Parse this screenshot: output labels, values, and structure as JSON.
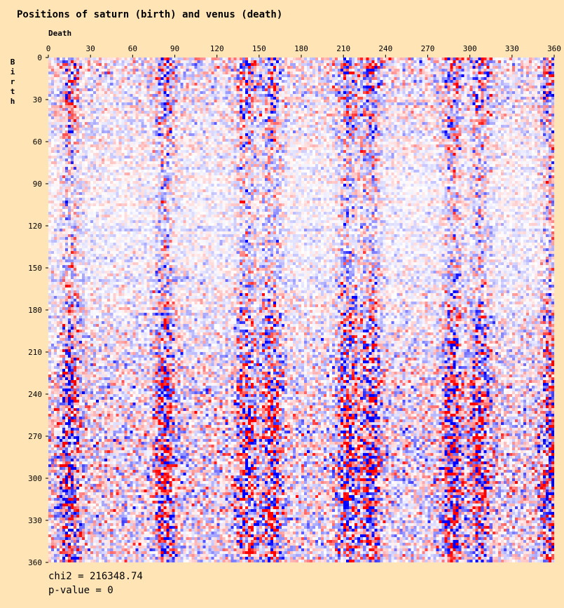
{
  "chart_data": {
    "type": "heatmap",
    "title": "Positions of saturn (birth) and venus (death)",
    "xlabel": "Death",
    "ylabel": "Birth",
    "xlim": [
      0,
      360
    ],
    "ylim": [
      0,
      360
    ],
    "x_ticks": [
      0,
      30,
      60,
      90,
      120,
      150,
      180,
      210,
      240,
      270,
      300,
      330,
      360
    ],
    "y_ticks": [
      0,
      30,
      60,
      90,
      120,
      150,
      180,
      210,
      240,
      270,
      300,
      330,
      360
    ],
    "cell_size_deg": 2,
    "colormap": {
      "low": "#0000ff",
      "mid": "#ffffff",
      "high": "#ff0000"
    },
    "note": "Residual heatmap; cell values not readable, strong vertical bands of deviation near these venus longitudes",
    "band_centers_deg": [
      15,
      82,
      140,
      158,
      212,
      228,
      287,
      307,
      357
    ],
    "chi2": "chi2 = 216348.74",
    "p_value": "p-value = 0"
  }
}
